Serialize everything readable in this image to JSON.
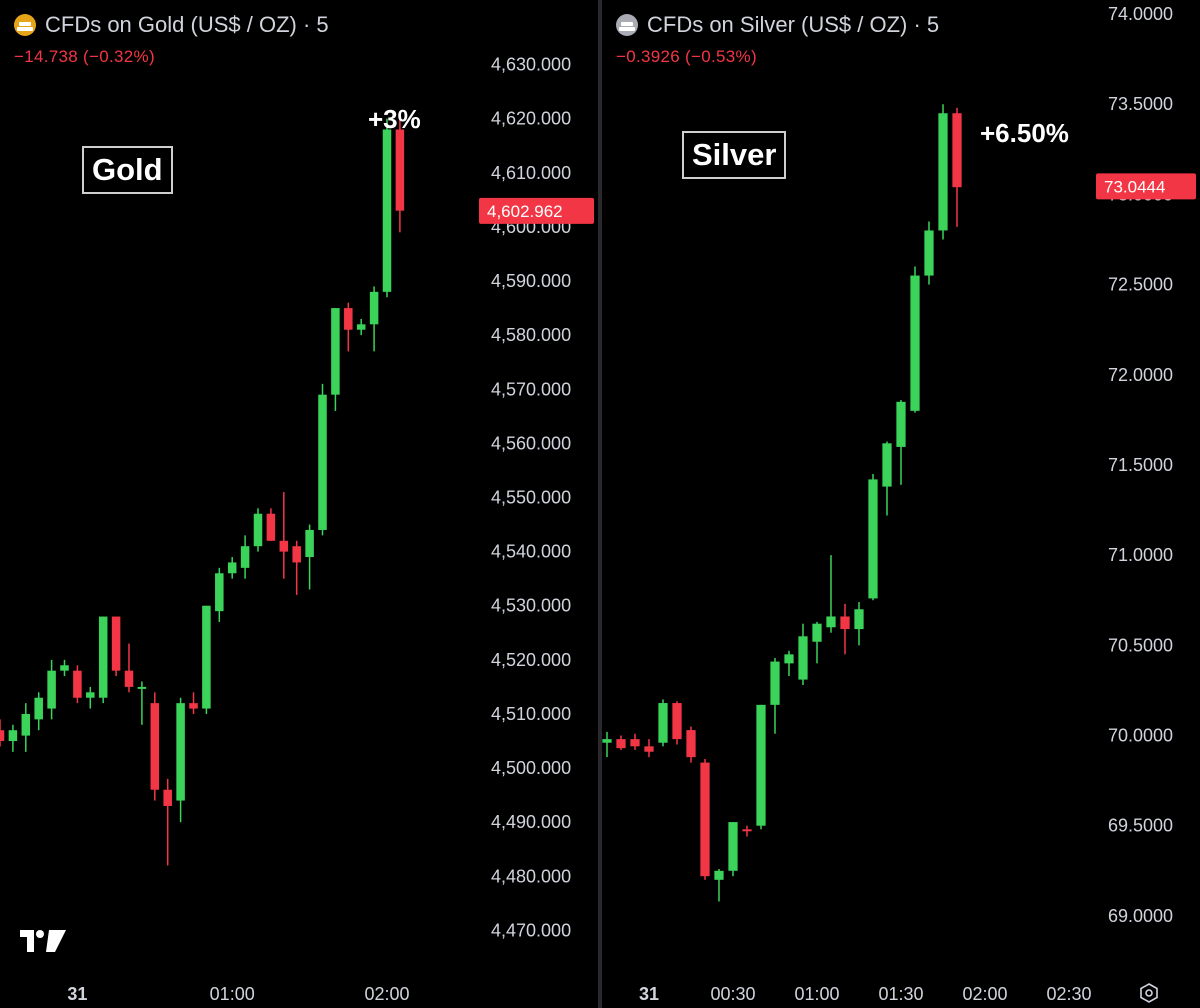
{
  "gold": {
    "title": "CFDs on Gold (US$ / OZ) · 5",
    "change": "−14.738 (−0.32%)",
    "label": "Gold",
    "pct": "+3%",
    "icon": "gold-bars-icon"
  },
  "silver": {
    "title": "CFDs on Silver (US$ / OZ) · 5",
    "change": "−0.3926 (−0.53%)",
    "label": "Silver",
    "pct": "+6.50%",
    "icon": "silver-bars-icon"
  },
  "colors": {
    "up": "#3bd35a",
    "down": "#f23645",
    "background": "#000000",
    "axis_text": "#d1d4dc"
  },
  "chart_data": [
    {
      "type": "candlestick",
      "title": "CFDs on Gold (US$ / OZ) · 5",
      "ylim": [
        4465,
        4635
      ],
      "y_ticks": [
        "4,470.000",
        "4,480.000",
        "4,490.000",
        "4,500.000",
        "4,510.000",
        "4,520.000",
        "4,530.000",
        "4,540.000",
        "4,550.000",
        "4,560.000",
        "4,570.000",
        "4,580.000",
        "4,590.000",
        "4,600.000",
        "4,610.000",
        "4,620.000",
        "4,630.000"
      ],
      "y_tick_values": [
        4470,
        4480,
        4490,
        4500,
        4510,
        4520,
        4530,
        4540,
        4550,
        4560,
        4570,
        4580,
        4590,
        4600,
        4610,
        4620,
        4630
      ],
      "x_ticks": [
        {
          "label": "31",
          "index": 6,
          "bold": true
        },
        {
          "label": "01:00",
          "index": 18
        },
        {
          "label": "02:00",
          "index": 30
        }
      ],
      "last_price": "4,602.962",
      "last_price_value": 4602.962,
      "candles": [
        {
          "o": 4507,
          "h": 4509,
          "l": 4504,
          "c": 4505
        },
        {
          "o": 4505,
          "h": 4508,
          "l": 4503,
          "c": 4507
        },
        {
          "o": 4506,
          "h": 4512,
          "l": 4503,
          "c": 4510
        },
        {
          "o": 4509,
          "h": 4514,
          "l": 4507,
          "c": 4513
        },
        {
          "o": 4511,
          "h": 4520,
          "l": 4509,
          "c": 4518
        },
        {
          "o": 4518,
          "h": 4520,
          "l": 4517,
          "c": 4519
        },
        {
          "o": 4518,
          "h": 4519,
          "l": 4512,
          "c": 4513
        },
        {
          "o": 4513,
          "h": 4515,
          "l": 4511,
          "c": 4514
        },
        {
          "o": 4513,
          "h": 4528,
          "l": 4512,
          "c": 4528
        },
        {
          "o": 4528,
          "h": 4528,
          "l": 4517,
          "c": 4518
        },
        {
          "o": 4518,
          "h": 4523,
          "l": 4514,
          "c": 4515
        },
        {
          "o": 4515,
          "h": 4516,
          "l": 4508,
          "c": 4515
        },
        {
          "o": 4512,
          "h": 4514,
          "l": 4494,
          "c": 4496
        },
        {
          "o": 4496,
          "h": 4498,
          "l": 4482,
          "c": 4493
        },
        {
          "o": 4494,
          "h": 4513,
          "l": 4490,
          "c": 4512
        },
        {
          "o": 4512,
          "h": 4514,
          "l": 4510,
          "c": 4511
        },
        {
          "o": 4511,
          "h": 4530,
          "l": 4510,
          "c": 4530
        },
        {
          "o": 4529,
          "h": 4537,
          "l": 4527,
          "c": 4536
        },
        {
          "o": 4536,
          "h": 4539,
          "l": 4535,
          "c": 4538
        },
        {
          "o": 4537,
          "h": 4543,
          "l": 4535,
          "c": 4541
        },
        {
          "o": 4541,
          "h": 4548,
          "l": 4540,
          "c": 4547
        },
        {
          "o": 4547,
          "h": 4548,
          "l": 4542,
          "c": 4542
        },
        {
          "o": 4542,
          "h": 4551,
          "l": 4535,
          "c": 4540
        },
        {
          "o": 4541,
          "h": 4542,
          "l": 4532,
          "c": 4538
        },
        {
          "o": 4539,
          "h": 4545,
          "l": 4533,
          "c": 4544
        },
        {
          "o": 4544,
          "h": 4571,
          "l": 4543,
          "c": 4569
        },
        {
          "o": 4569,
          "h": 4585,
          "l": 4566,
          "c": 4585
        },
        {
          "o": 4585,
          "h": 4586,
          "l": 4577,
          "c": 4581
        },
        {
          "o": 4581,
          "h": 4583,
          "l": 4580,
          "c": 4582
        },
        {
          "o": 4582,
          "h": 4589,
          "l": 4577,
          "c": 4588
        },
        {
          "o": 4588,
          "h": 4620,
          "l": 4587,
          "c": 4618
        },
        {
          "o": 4618,
          "h": 4620,
          "l": 4599,
          "c": 4603
        }
      ]
    },
    {
      "type": "candlestick",
      "title": "CFDs on Silver (US$ / OZ) · 5",
      "ylim": [
        68.7,
        74.05
      ],
      "y_ticks": [
        "69.0000",
        "69.5000",
        "70.0000",
        "70.5000",
        "71.0000",
        "71.5000",
        "72.0000",
        "72.5000",
        "73.0000",
        "73.5000",
        "74.0000"
      ],
      "y_tick_values": [
        69,
        69.5,
        70,
        70.5,
        71,
        71.5,
        72,
        72.5,
        73,
        73.5,
        74
      ],
      "x_ticks": [
        {
          "label": "31",
          "index": 3,
          "bold": true
        },
        {
          "label": "00:30",
          "index": 9
        },
        {
          "label": "01:00",
          "index": 15
        },
        {
          "label": "01:30",
          "index": 21
        },
        {
          "label": "02:00",
          "index": 27
        },
        {
          "label": "02:30",
          "index": 33
        }
      ],
      "last_price": "73.0444",
      "last_price_value": 73.0444,
      "candles": [
        {
          "o": 69.96,
          "h": 70.02,
          "l": 69.88,
          "c": 69.98
        },
        {
          "o": 69.98,
          "h": 70.0,
          "l": 69.92,
          "c": 69.93
        },
        {
          "o": 69.98,
          "h": 70.01,
          "l": 69.92,
          "c": 69.94
        },
        {
          "o": 69.94,
          "h": 69.98,
          "l": 69.88,
          "c": 69.91
        },
        {
          "o": 69.96,
          "h": 70.2,
          "l": 69.94,
          "c": 70.18
        },
        {
          "o": 70.18,
          "h": 70.19,
          "l": 69.95,
          "c": 69.98
        },
        {
          "o": 70.03,
          "h": 70.05,
          "l": 69.85,
          "c": 69.88
        },
        {
          "o": 69.85,
          "h": 69.87,
          "l": 69.2,
          "c": 69.22
        },
        {
          "o": 69.2,
          "h": 69.26,
          "l": 69.08,
          "c": 69.25
        },
        {
          "o": 69.25,
          "h": 69.52,
          "l": 69.22,
          "c": 69.52
        },
        {
          "o": 69.48,
          "h": 69.5,
          "l": 69.44,
          "c": 69.47
        },
        {
          "o": 69.5,
          "h": 70.17,
          "l": 69.48,
          "c": 70.17
        },
        {
          "o": 70.17,
          "h": 70.43,
          "l": 70.01,
          "c": 70.41
        },
        {
          "o": 70.4,
          "h": 70.47,
          "l": 70.33,
          "c": 70.45
        },
        {
          "o": 70.31,
          "h": 70.62,
          "l": 70.28,
          "c": 70.55
        },
        {
          "o": 70.52,
          "h": 70.63,
          "l": 70.4,
          "c": 70.62
        },
        {
          "o": 70.6,
          "h": 71.0,
          "l": 70.57,
          "c": 70.66
        },
        {
          "o": 70.66,
          "h": 70.73,
          "l": 70.45,
          "c": 70.59
        },
        {
          "o": 70.59,
          "h": 70.74,
          "l": 70.5,
          "c": 70.7
        },
        {
          "o": 70.76,
          "h": 71.45,
          "l": 70.75,
          "c": 71.42
        },
        {
          "o": 71.38,
          "h": 71.63,
          "l": 71.22,
          "c": 71.62
        },
        {
          "o": 71.6,
          "h": 71.86,
          "l": 71.39,
          "c": 71.85
        },
        {
          "o": 71.8,
          "h": 72.6,
          "l": 71.79,
          "c": 72.55
        },
        {
          "o": 72.55,
          "h": 72.85,
          "l": 72.5,
          "c": 72.8
        },
        {
          "o": 72.8,
          "h": 73.5,
          "l": 72.75,
          "c": 73.45
        },
        {
          "o": 73.45,
          "h": 73.48,
          "l": 72.82,
          "c": 73.04
        }
      ]
    }
  ]
}
